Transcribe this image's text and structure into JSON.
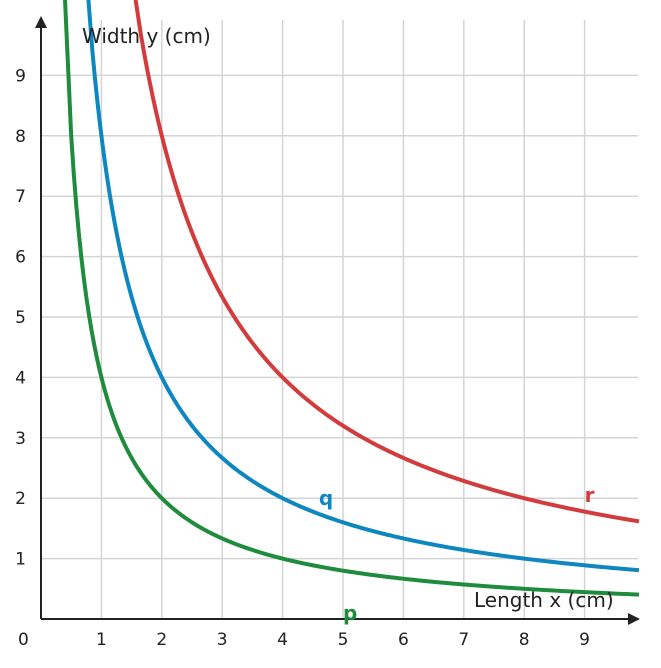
{
  "chart_data": {
    "type": "line",
    "xlabel": "Length x (cm)",
    "ylabel": "Width y (cm)",
    "xlim": [
      0,
      9.9
    ],
    "ylim": [
      0,
      9.9
    ],
    "x_ticks": [
      1,
      2,
      3,
      4,
      5,
      6,
      7,
      8,
      9
    ],
    "y_ticks": [
      1,
      2,
      3,
      4,
      5,
      6,
      7,
      8,
      9
    ],
    "origin_label": "0",
    "grid": true,
    "series": [
      {
        "name": "p",
        "color": "#1e8c3c",
        "equation": "y = 4/x",
        "points": [
          [
            0.5,
            8
          ],
          [
            1,
            4
          ],
          [
            2,
            2
          ],
          [
            3,
            1.333
          ],
          [
            4,
            1
          ],
          [
            5,
            0.8
          ],
          [
            6,
            0.667
          ],
          [
            7,
            0.571
          ],
          [
            8,
            0.5
          ],
          [
            9,
            0.444
          ],
          [
            9.9,
            0.404
          ]
        ]
      },
      {
        "name": "q",
        "color": "#0e87c0",
        "equation": "y = 8/x",
        "points": [
          [
            0.85,
            9.41
          ],
          [
            1,
            8
          ],
          [
            2,
            4
          ],
          [
            3,
            2.667
          ],
          [
            4,
            2
          ],
          [
            5,
            1.6
          ],
          [
            6,
            1.333
          ],
          [
            7,
            1.143
          ],
          [
            8,
            1
          ],
          [
            9,
            0.889
          ],
          [
            9.9,
            0.808
          ]
        ]
      },
      {
        "name": "r",
        "color": "#d23c3c",
        "equation": "y = 16/x",
        "points": [
          [
            1.65,
            9.7
          ],
          [
            2,
            8
          ],
          [
            3,
            5.333
          ],
          [
            4,
            4
          ],
          [
            5,
            3.2
          ],
          [
            6,
            2.667
          ],
          [
            7,
            2.286
          ],
          [
            8,
            2
          ],
          [
            9,
            1.778
          ],
          [
            9.9,
            1.616
          ]
        ]
      }
    ]
  }
}
